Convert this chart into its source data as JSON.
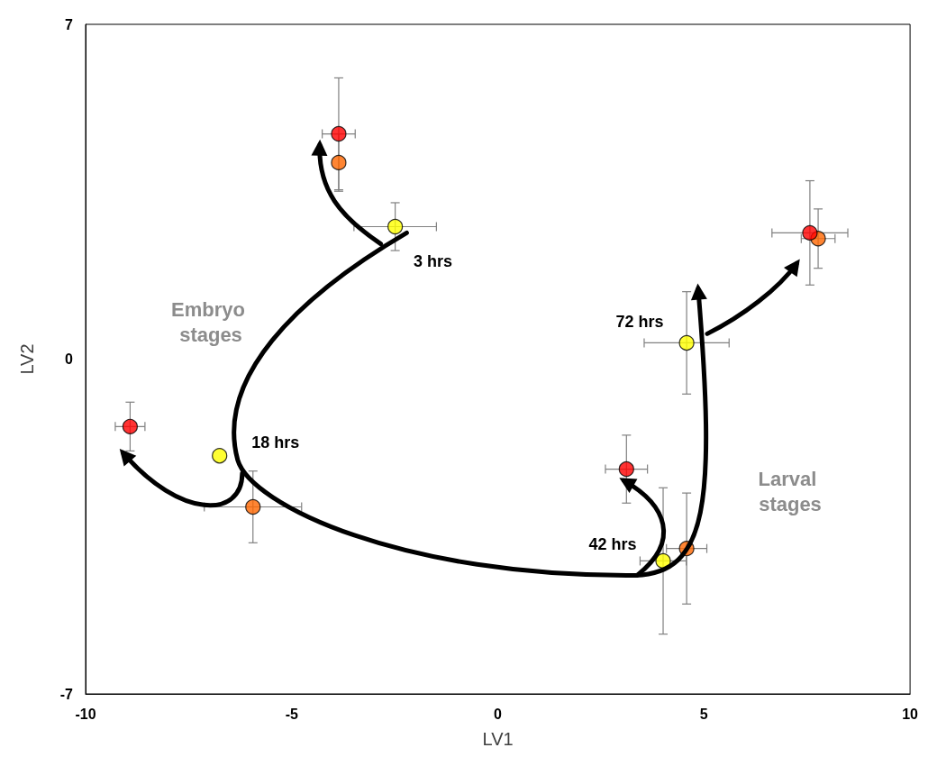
{
  "chart_data": {
    "type": "scatter",
    "xlabel": "LV1",
    "ylabel": "LV2",
    "xlim": [
      -10,
      10
    ],
    "xticks": [
      -10,
      -5,
      0,
      5,
      10
    ],
    "ylim": [
      -7,
      7
    ],
    "yticks": [
      -7,
      0,
      7
    ],
    "grid": false,
    "marker": "circle",
    "series": [
      {
        "color": "#ffff00",
        "x": [
          -2.49,
          -6.75,
          4.01,
          4.58
        ],
        "values": [
          2.77,
          -2.02,
          -4.22,
          0.34
        ],
        "errors": [
          0.5,
          null,
          1.53,
          1.07
        ],
        "xerrors": [
          1.0,
          null,
          0.56,
          1.03
        ]
      },
      {
        "color": "#ff6600",
        "x": [
          -3.86,
          -5.94,
          4.58,
          7.77
        ],
        "values": [
          4.11,
          -3.09,
          -3.96,
          2.52
        ],
        "errors": [
          0.6,
          0.75,
          1.16,
          0.62
        ],
        "xerrors": [
          null,
          1.18,
          0.49,
          0.41
        ]
      },
      {
        "color": "#ff0000",
        "x": [
          -3.86,
          -8.92,
          3.12,
          7.57
        ],
        "values": [
          4.71,
          -1.41,
          -2.3,
          2.64
        ],
        "errors": [
          1.17,
          0.51,
          0.71,
          1.09
        ],
        "xerrors": [
          0.4,
          0.36,
          0.51,
          0.92
        ]
      }
    ],
    "annotations": [
      {
        "text": "3 hrs",
        "x": -2.49,
        "y": 2.77
      },
      {
        "text": "18 hrs",
        "x": -6.75,
        "y": -2.02
      },
      {
        "text": "42 hrs",
        "x": 4.01,
        "y": -4.22
      },
      {
        "text": "72 hrs",
        "x": 4.58,
        "y": 0.34
      },
      "Embryo stages",
      "Larval stages"
    ]
  }
}
